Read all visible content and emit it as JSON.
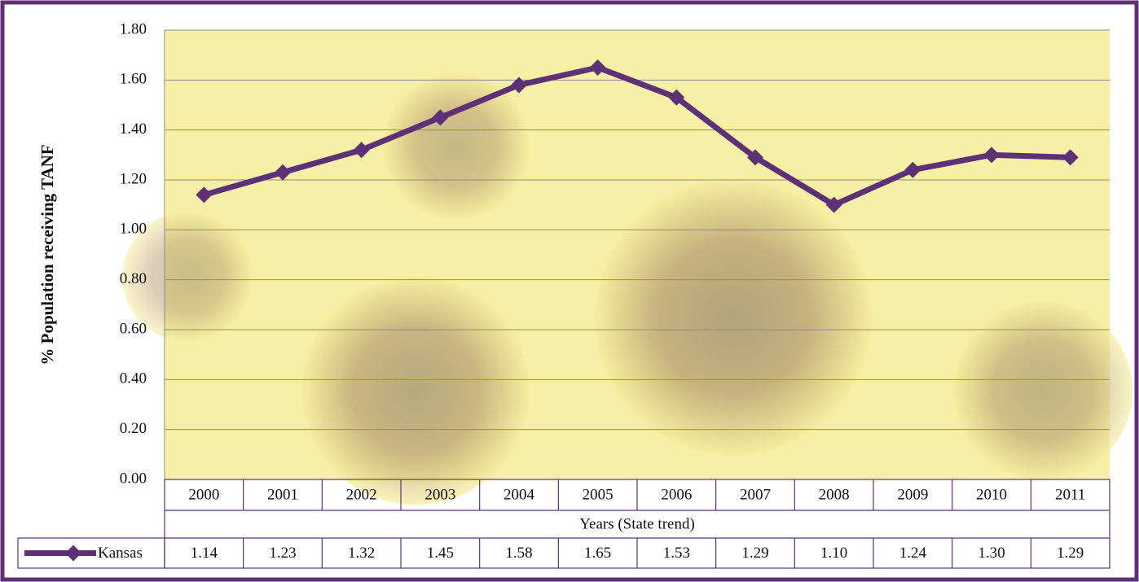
{
  "chart_data": {
    "type": "line",
    "y_axis_label": "% Population receiving TANF",
    "x_axis_label": "Years (State trend)",
    "categories": [
      "2000",
      "2001",
      "2002",
      "2003",
      "2004",
      "2005",
      "2006",
      "2007",
      "2008",
      "2009",
      "2010",
      "2011"
    ],
    "series": [
      {
        "name": "Kansas",
        "color": "#5e3177",
        "values": [
          1.14,
          1.23,
          1.32,
          1.45,
          1.58,
          1.65,
          1.53,
          1.29,
          1.1,
          1.24,
          1.3,
          1.29
        ],
        "value_labels": [
          "1.14",
          "1.23",
          "1.32",
          "1.45",
          "1.58",
          "1.65",
          "1.53",
          "1.29",
          "1.10",
          "1.24",
          "1.30",
          "1.29"
        ]
      }
    ],
    "ylim": [
      0,
      1.8
    ],
    "yticks": [
      {
        "value": 0,
        "label": "0.00"
      },
      {
        "value": 0.2,
        "label": "0.20"
      },
      {
        "value": 0.4,
        "label": "0.40"
      },
      {
        "value": 0.6,
        "label": "0.60"
      },
      {
        "value": 0.8,
        "label": "0.80"
      },
      {
        "value": 1,
        "label": "1.00"
      },
      {
        "value": 1.2,
        "label": "1.20"
      },
      {
        "value": 1.4,
        "label": "1.40"
      },
      {
        "value": 1.6,
        "label": "1.60"
      },
      {
        "value": 1.8,
        "label": "1.80"
      }
    ],
    "grid": true
  }
}
